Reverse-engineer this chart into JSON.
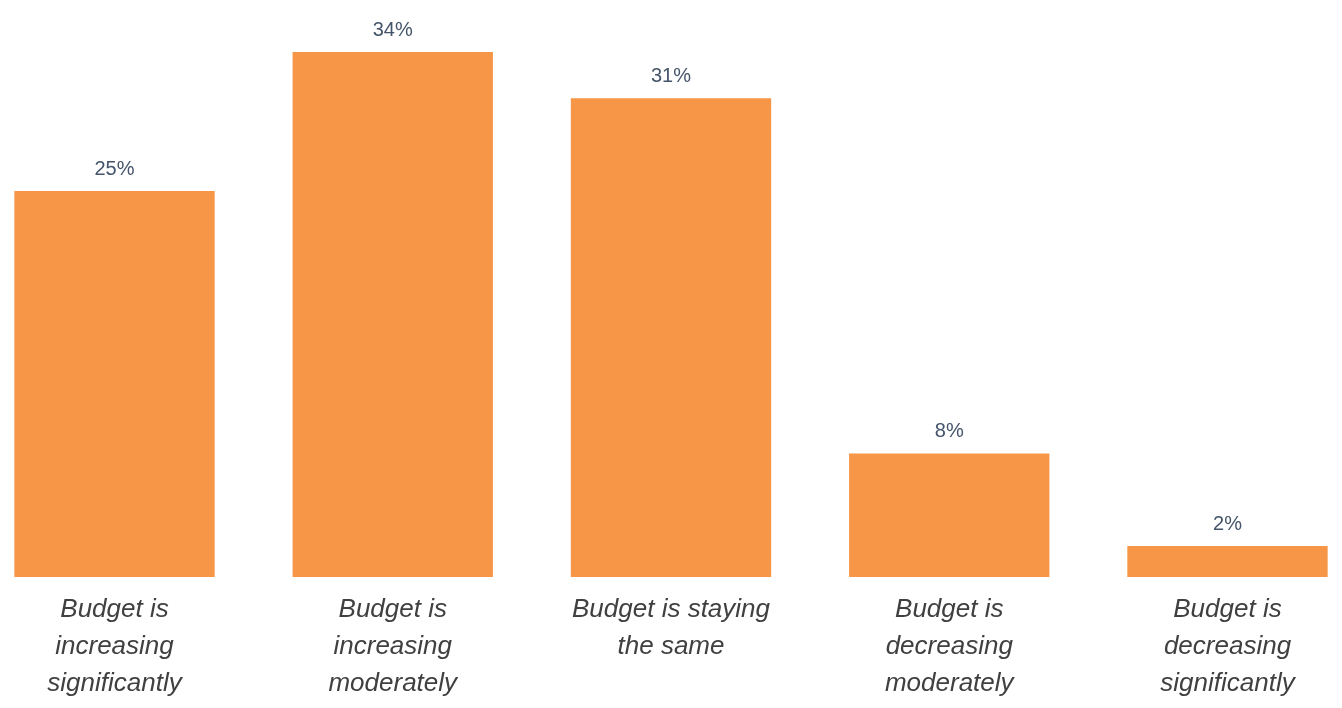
{
  "chart_data": {
    "type": "bar",
    "categories": [
      "Budget is increasing significantly",
      "Budget is increasing moderately",
      "Budget is staying the same",
      "Budget is decreasing moderately",
      "Budget is decreasing significantly"
    ],
    "values": [
      25,
      34,
      31,
      8,
      2
    ],
    "value_labels": [
      "25%",
      "34%",
      "31%",
      "8%",
      "2%"
    ],
    "color": "#f79646"
  }
}
